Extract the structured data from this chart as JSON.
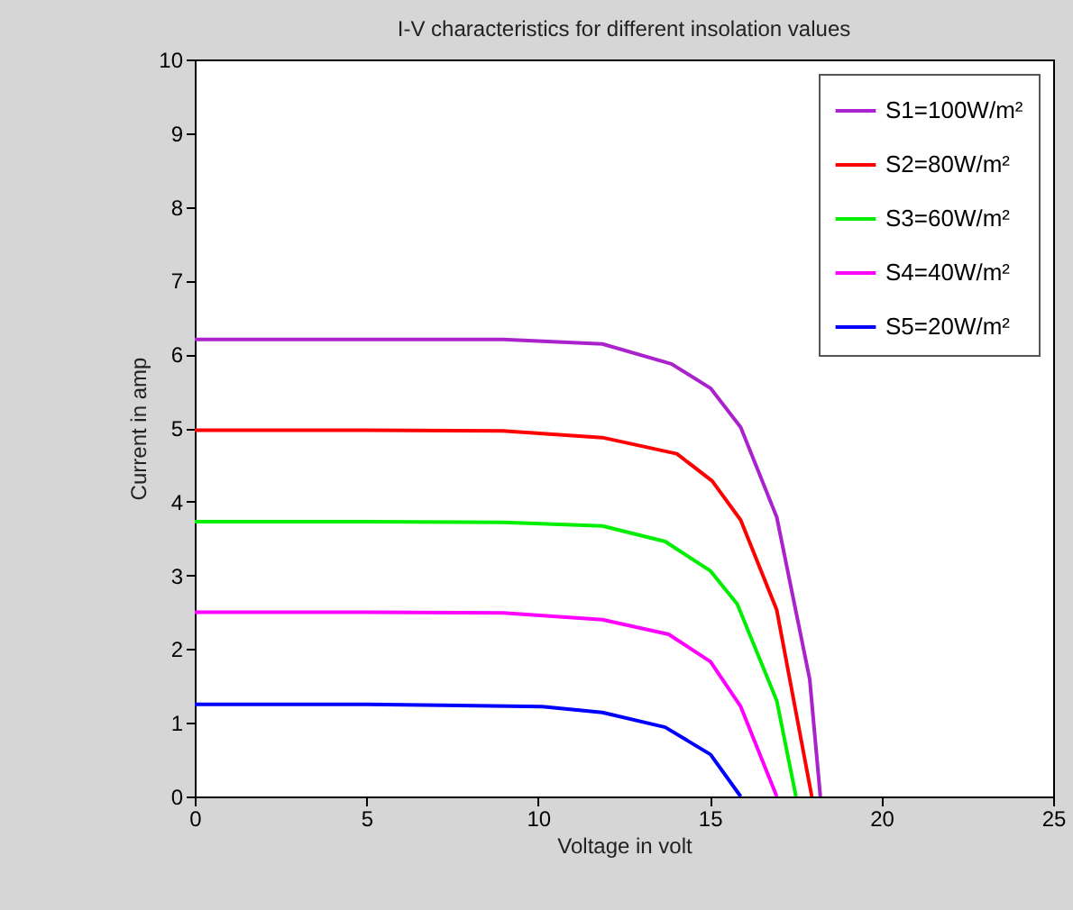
{
  "chart_data": {
    "type": "line",
    "title": "I-V characteristics for different insolation values",
    "xlabel": "Voltage in volt",
    "ylabel": "Current in amp",
    "xlim": [
      0,
      25
    ],
    "xticks": [
      0,
      5,
      10,
      15,
      20,
      25
    ],
    "ylim": [
      0,
      10
    ],
    "yticks": [
      0,
      1,
      2,
      3,
      4,
      5,
      6,
      7,
      8,
      9,
      10
    ],
    "grid": false,
    "legend": "top right",
    "series": [
      {
        "name": "S1=100W/m²",
        "color": "#aa22cc",
        "x": [
          0,
          5,
          8.98,
          11.87,
          13.88,
          15.02,
          15.9,
          16.95,
          17.91,
          18.22
        ],
        "values": [
          6.2,
          6.2,
          6.2,
          6.14,
          5.87,
          5.54,
          5.01,
          3.79,
          1.59,
          0
        ]
      },
      {
        "name": "S2=80W/m²",
        "color": "#ff0000",
        "x": [
          0,
          5,
          8.98,
          11.87,
          14.04,
          15.07,
          15.9,
          16.95,
          17.97
        ],
        "values": [
          4.97,
          4.97,
          4.96,
          4.87,
          4.65,
          4.28,
          3.75,
          2.53,
          0
        ]
      },
      {
        "name": "S3=60W/m²",
        "color": "#00ee00",
        "x": [
          0,
          5,
          8.98,
          11.87,
          13.7,
          15.02,
          15.8,
          16.95,
          17.51
        ],
        "values": [
          3.73,
          3.73,
          3.72,
          3.67,
          3.46,
          3.06,
          2.61,
          1.3,
          0
        ]
      },
      {
        "name": "S4=40W/m²",
        "color": "#ff00ff",
        "x": [
          0,
          5,
          8.98,
          11.87,
          13.8,
          15.02,
          15.9,
          16.95
        ],
        "values": [
          2.5,
          2.5,
          2.49,
          2.4,
          2.2,
          1.83,
          1.22,
          0
        ]
      },
      {
        "name": "S5=20W/m²",
        "color": "#0000ff",
        "x": [
          0,
          5,
          10.12,
          11.87,
          13.7,
          15.02,
          15.9
        ],
        "values": [
          1.25,
          1.25,
          1.22,
          1.14,
          0.94,
          0.57,
          0
        ]
      }
    ]
  }
}
